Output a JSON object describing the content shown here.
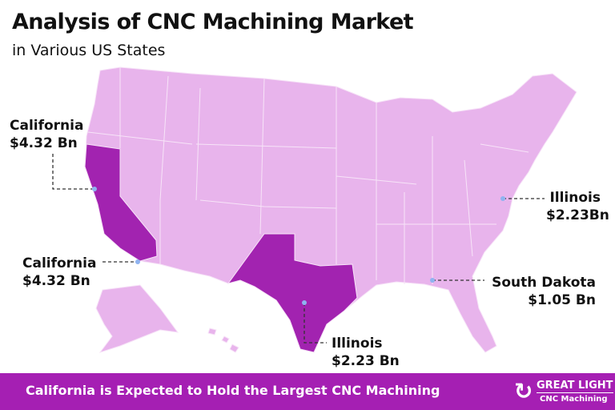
{
  "header": {
    "title": "Analysis of CNC Machining Market",
    "subtitle": "in Various US States"
  },
  "map": {
    "colors": {
      "base": "#e8b4ec",
      "highlight": "#a223b0",
      "border": "#f7e4f8",
      "marker": "#8fb3f0"
    },
    "highlighted_states": [
      "California",
      "Texas"
    ],
    "callouts": [
      {
        "name": "California",
        "value": "$4.32 Bn"
      },
      {
        "name": "California",
        "value": "$4.32 Bn"
      },
      {
        "name": "Illinois",
        "value": "$2.23Bn"
      },
      {
        "name": "South Dakota",
        "value": "$1.05 Bn"
      },
      {
        "name": "Illinois",
        "value": "$2.23 Bn"
      }
    ]
  },
  "banner": {
    "text": "California is Expected to Hold the Largest CNC Machining",
    "color": "#a51fb3"
  },
  "logo": {
    "mark": "G",
    "name": "GREAT LIGHT",
    "sub": "CNC Machining"
  }
}
